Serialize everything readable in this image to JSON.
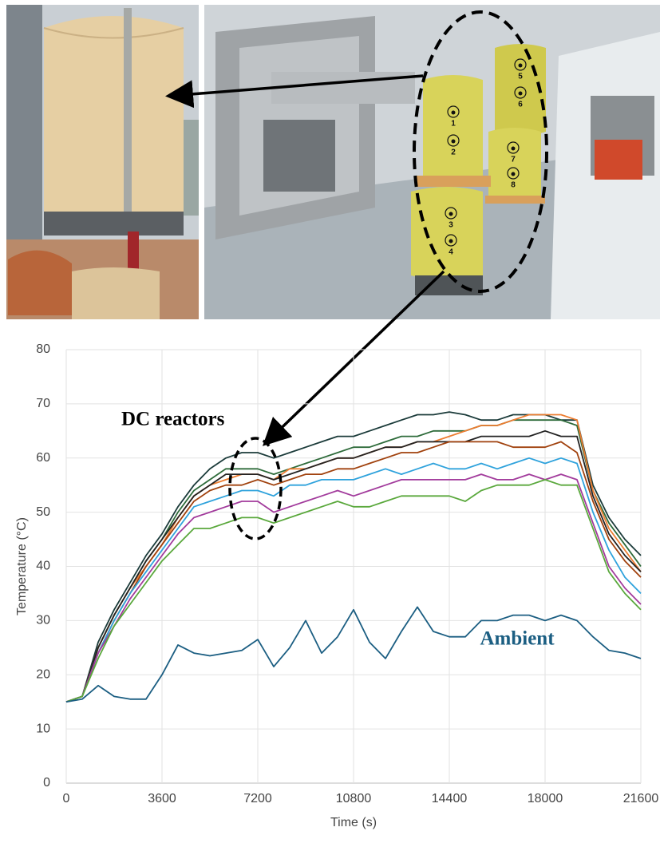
{
  "sensors": [
    "1",
    "2",
    "3",
    "4",
    "5",
    "6",
    "7",
    "8"
  ],
  "chart_data": {
    "type": "line",
    "ylabel": "Temperature (°C)",
    "xlabel": "Time (s)",
    "annotations": [
      "DC reactors"
    ],
    "xlim": [
      0,
      21600
    ],
    "xticks": [
      0,
      3600,
      7200,
      10800,
      14400,
      18000,
      21600
    ],
    "ylim": [
      0,
      80
    ],
    "yticks": [
      0,
      10,
      20,
      30,
      40,
      50,
      60,
      70,
      80
    ],
    "grid": true,
    "x": [
      0,
      600,
      1200,
      1800,
      2400,
      3000,
      3600,
      4200,
      4800,
      5400,
      6000,
      6600,
      7200,
      7800,
      8400,
      9000,
      9600,
      10200,
      10800,
      11400,
      12000,
      12600,
      13200,
      13800,
      14400,
      15000,
      15600,
      16200,
      16800,
      17400,
      18000,
      18600,
      19200,
      19800,
      20400,
      21000,
      21600
    ],
    "series": [
      {
        "color": "#1b3b3a",
        "values": [
          15,
          16,
          26,
          32,
          37,
          42,
          46,
          51,
          55,
          58,
          60,
          61,
          61,
          60,
          61,
          62,
          63,
          64,
          64,
          65,
          66,
          67,
          68,
          68,
          68.5,
          68,
          67,
          67,
          68,
          68,
          68,
          67,
          67,
          55,
          49,
          45,
          42
        ]
      },
      {
        "color": "#2e6b3a",
        "values": [
          15,
          16,
          25,
          31,
          36,
          41,
          45,
          50,
          54,
          56,
          58,
          58,
          58,
          57,
          58,
          59,
          60,
          61,
          62,
          62,
          63,
          64,
          64,
          65,
          65,
          65,
          66,
          66,
          67,
          67,
          67,
          67,
          66,
          54,
          48,
          44,
          40
        ]
      },
      {
        "color": "#ed7d31",
        "values": [
          15,
          16,
          25,
          31,
          36,
          40,
          44,
          49,
          53,
          55,
          56,
          57,
          57,
          56,
          58,
          58,
          59,
          60,
          60,
          61,
          62,
          62,
          63,
          63,
          64,
          65,
          66,
          66,
          67,
          68,
          68,
          68,
          67,
          54,
          47,
          43,
          39
        ]
      },
      {
        "color": "#222222",
        "values": [
          15,
          16,
          25,
          31,
          36,
          41,
          45,
          49,
          53,
          55,
          57,
          57,
          57,
          56,
          57,
          58,
          59,
          60,
          60,
          61,
          62,
          62,
          63,
          63,
          63,
          63,
          64,
          64,
          64,
          64,
          65,
          64,
          64,
          53,
          46,
          42,
          39
        ]
      },
      {
        "color": "#a0410d",
        "values": [
          15,
          16,
          24,
          30,
          35,
          40,
          44,
          48,
          52,
          54,
          55,
          55,
          56,
          55,
          56,
          57,
          57,
          58,
          58,
          59,
          60,
          61,
          61,
          62,
          63,
          63,
          63,
          63,
          62,
          62,
          62,
          63,
          61,
          52,
          45,
          41,
          38
        ]
      },
      {
        "color": "#2ea2dc",
        "values": [
          15,
          16,
          24,
          30,
          35,
          39,
          43,
          47,
          51,
          52,
          53,
          54,
          54,
          53,
          55,
          55,
          56,
          56,
          56,
          57,
          58,
          57,
          58,
          59,
          58,
          58,
          59,
          58,
          59,
          60,
          59,
          60,
          59,
          50,
          43,
          38,
          35
        ]
      },
      {
        "color": "#a23b9c",
        "values": [
          15,
          16,
          24,
          29,
          34,
          38,
          42,
          46,
          49,
          50,
          51,
          52,
          52,
          50,
          51,
          52,
          53,
          54,
          53,
          54,
          55,
          56,
          56,
          56,
          56,
          56,
          57,
          56,
          56,
          57,
          56,
          57,
          56,
          48,
          40,
          36,
          33
        ]
      },
      {
        "color": "#5aa83c",
        "values": [
          15,
          16,
          23,
          29,
          33,
          37,
          41,
          44,
          47,
          47,
          48,
          49,
          49,
          48,
          49,
          50,
          51,
          52,
          51,
          51,
          52,
          53,
          53,
          53,
          53,
          52,
          54,
          55,
          55,
          55,
          56,
          55,
          55,
          47,
          39,
          35,
          32
        ]
      },
      {
        "name": "Ambient",
        "color": "#1b5e82",
        "values": [
          15,
          15.5,
          18,
          16,
          15.5,
          15.5,
          20,
          25.5,
          24,
          23.5,
          24,
          24.5,
          26.5,
          21.5,
          25,
          30,
          24,
          27,
          32,
          26,
          23,
          28,
          32.5,
          28,
          27,
          27,
          30,
          30,
          31,
          31,
          30,
          31,
          30,
          27,
          24.5,
          24,
          23
        ]
      }
    ]
  }
}
